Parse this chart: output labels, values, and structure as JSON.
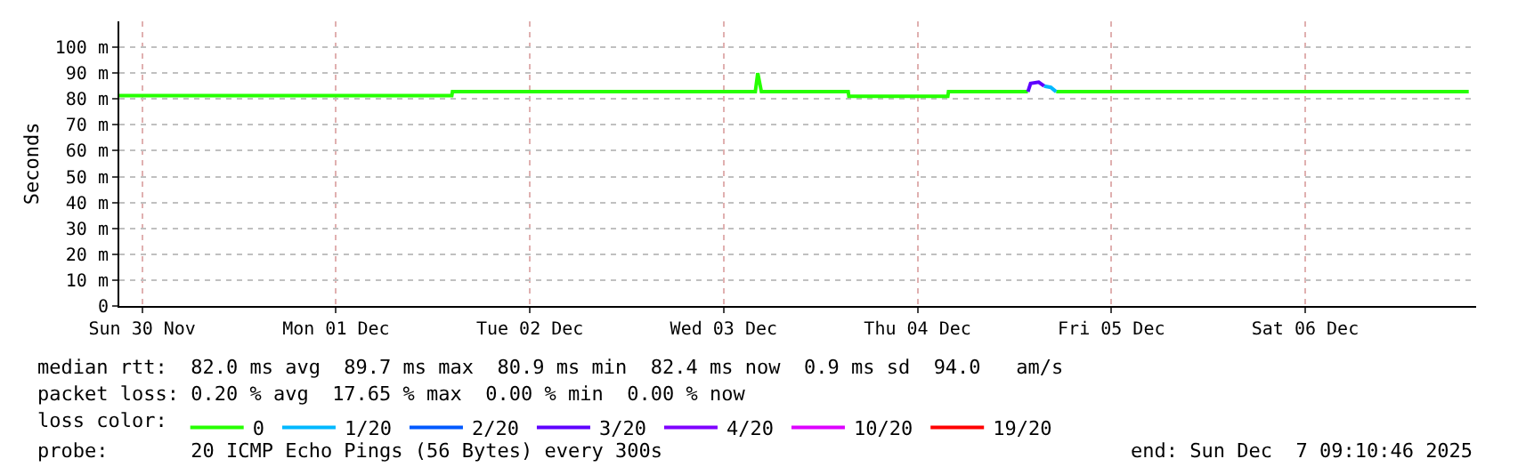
{
  "chart_data": {
    "type": "line",
    "ylabel": "Seconds",
    "xlim": [
      "2025-11-30T09:10",
      "2025-12-07T09:10"
    ],
    "xticks": [
      {
        "value": "2025-11-30T12:00",
        "label": "Sun 30 Nov"
      },
      {
        "value": "2025-12-01T12:00",
        "label": "Mon 01 Dec"
      },
      {
        "value": "2025-12-02T12:00",
        "label": "Tue 02 Dec"
      },
      {
        "value": "2025-12-03T12:00",
        "label": "Wed 03 Dec"
      },
      {
        "value": "2025-12-04T12:00",
        "label": "Thu 04 Dec"
      },
      {
        "value": "2025-12-05T12:00",
        "label": "Fri 05 Dec"
      },
      {
        "value": "2025-12-06T12:00",
        "label": "Sat 06 Dec"
      }
    ],
    "ylim": [
      0,
      110
    ],
    "yticks": [
      0,
      {
        "value": 10,
        "label": "10 m"
      },
      {
        "value": 20,
        "label": "20 m"
      },
      {
        "value": 30,
        "label": "30 m"
      },
      {
        "value": 40,
        "label": "40 m"
      },
      {
        "value": 50,
        "label": "50 m"
      },
      {
        "value": 60,
        "label": "60 m"
      },
      {
        "value": 70,
        "label": "70 m"
      },
      {
        "value": 80,
        "label": "80 m"
      },
      {
        "value": 90,
        "label": "90 m"
      },
      {
        "value": 100,
        "label": "100 m"
      }
    ],
    "grid": true,
    "legend": "bottom",
    "legend_title": "loss color:",
    "series": [
      {
        "name": "0",
        "color": "#26ff00",
        "x": [
          "2025-11-30T09:10",
          "2025-12-02T02:20",
          "2025-12-02T02:25",
          "2025-12-03T15:55",
          "2025-12-03T16:13",
          "2025-12-03T16:40",
          "2025-12-04T03:25",
          "2025-12-04T03:30",
          "2025-12-04T15:45",
          "2025-12-04T15:50",
          "2025-12-05T01:40",
          "2025-12-05T01:45",
          "2025-12-05T05:10",
          "2025-12-07T08:15"
        ],
        "values": [
          81.3,
          81.3,
          82.8,
          82.8,
          90,
          82.8,
          82.8,
          81,
          81,
          82.8,
          82.8,
          null,
          82.8,
          82.8
        ]
      },
      {
        "name": "1/20",
        "color": "#00b8ff",
        "x": [
          "2025-12-05T03:40",
          "2025-12-05T04:30",
          "2025-12-05T05:10"
        ],
        "values": [
          85,
          84.5,
          82.8
        ]
      },
      {
        "name": "2/20",
        "color": "#0059ff"
      },
      {
        "name": "3/20",
        "color": "#5e00ff",
        "x": [
          "2025-12-05T01:40",
          "2025-12-05T02:00",
          "2025-12-05T03:00",
          "2025-12-05T03:40"
        ],
        "values": [
          82.8,
          86,
          86.5,
          85
        ]
      },
      {
        "name": "4/20",
        "color": "#7e00ff"
      },
      {
        "name": "10/20",
        "color": "#dd00ff"
      },
      {
        "name": "19/20",
        "color": "#ff0000"
      }
    ],
    "annotations": [
      "median rtt:  82.0 ms avg  89.7 ms max  80.9 ms min  82.4 ms now  0.9 ms sd  94.0   am/s",
      "packet loss: 0.20 % avg  17.65 % max  0.00 % min  0.00 % now",
      "probe:       20 ICMP Echo Pings (56 Bytes) every 300s",
      "end: Sun Dec  7 09:10:46 2025"
    ]
  }
}
